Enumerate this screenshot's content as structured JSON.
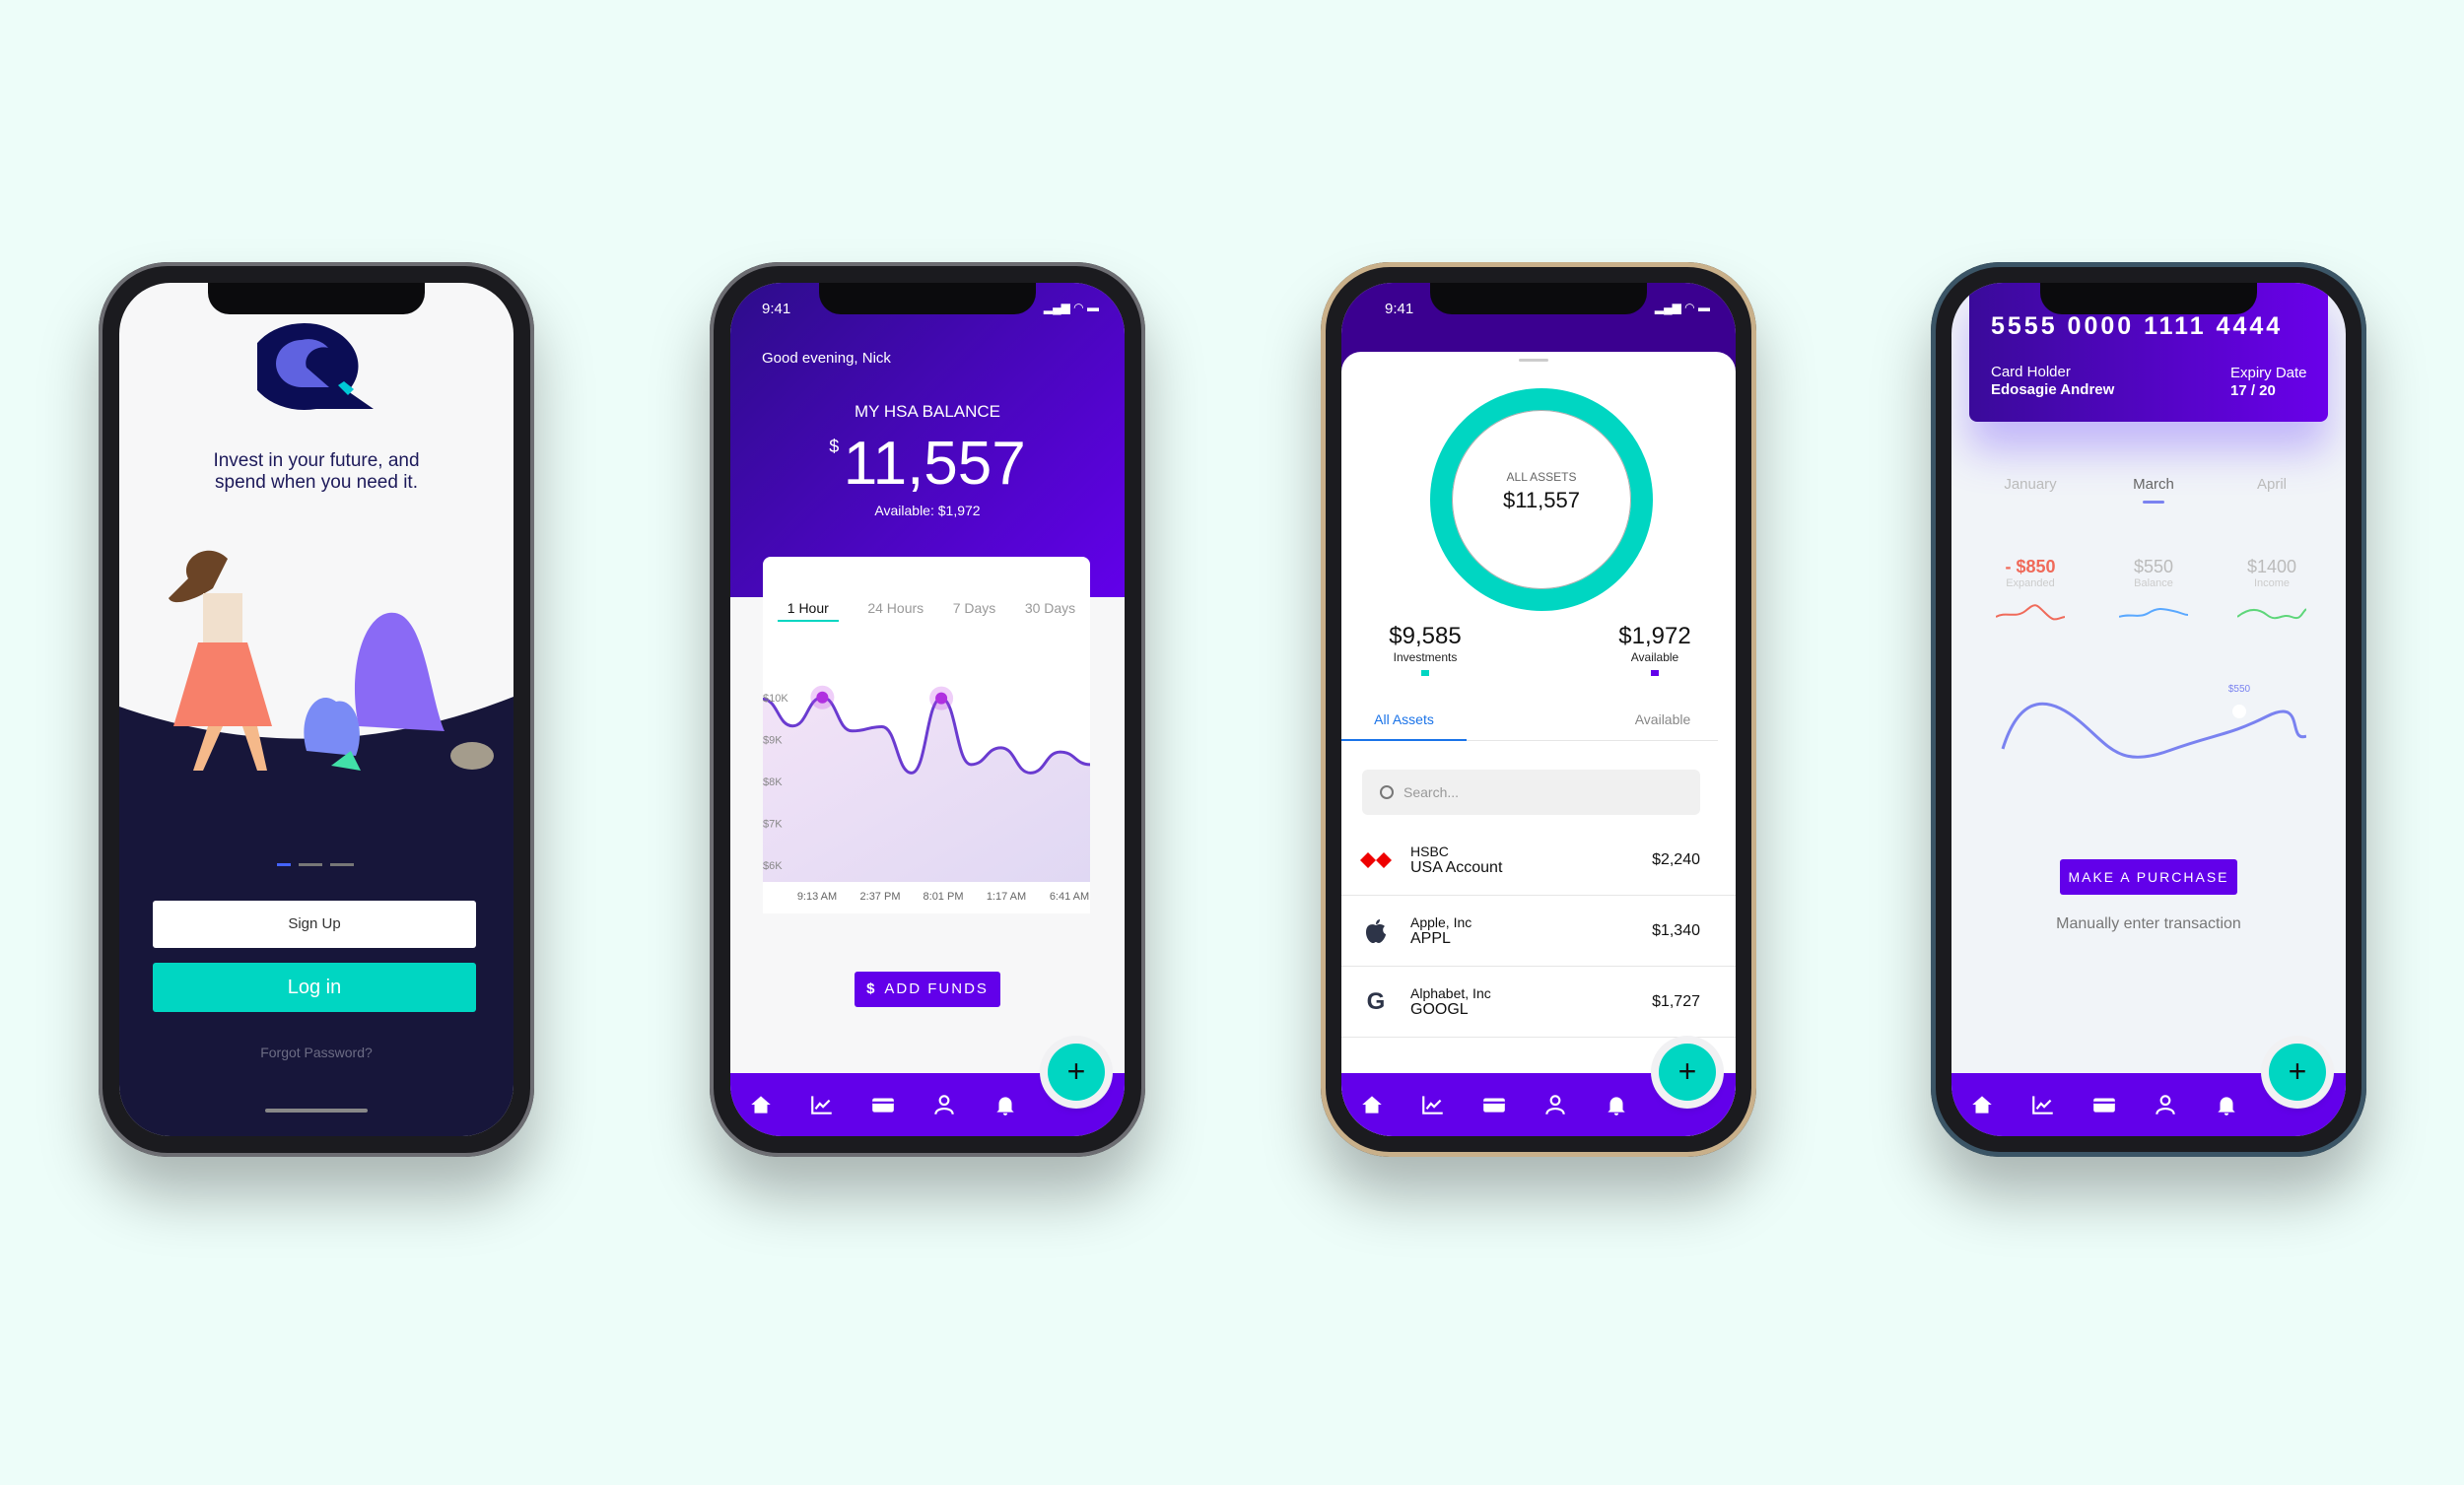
{
  "colors": {
    "background": "#edfdf9",
    "primary": "#6200ea",
    "accent": "#00d6c2",
    "dark": "#17163a",
    "negative": "#f06a5a"
  },
  "status_time": "9:41",
  "onboarding": {
    "tagline_1": "Invest in your future, and",
    "tagline_2": "spend when you need it.",
    "sign_up": "Sign Up",
    "log_in": "Log in",
    "forgot": "Forgot Password?",
    "pager_active": 0
  },
  "dashboard": {
    "greeting": "Good evening, Nick",
    "balance_title": "MY HSA BALANCE",
    "currency": "$",
    "balance": "11,557",
    "available": "Available: $1,972",
    "tabs": [
      "1 Hour",
      "24 Hours",
      "7 Days",
      "30 Days"
    ],
    "active_tab": 0,
    "add_funds": "ADD FUNDS",
    "chart_data": {
      "type": "area",
      "y_ticks": [
        "$10K",
        "$9K",
        "$8K",
        "$7K",
        "$6K"
      ],
      "x_ticks": [
        "9:13 AM",
        "2:37 PM",
        "8:01 PM",
        "1:17 AM",
        "6:41 AM"
      ],
      "ylim": [
        5600,
        10300
      ],
      "values": [
        9960,
        9320,
        10000,
        9200,
        9300,
        8200,
        9980,
        8400,
        8800,
        8200,
        8700,
        8400
      ],
      "highlighted": [
        2,
        6
      ]
    }
  },
  "assets": {
    "donut_label": "ALL ASSETS",
    "donut_total": "$11,557",
    "investments_value": "$9,585",
    "investments_label": "Investments",
    "available_value": "$1,972",
    "available_label": "Available",
    "tabs": [
      "All Assets",
      "Available"
    ],
    "active_tab": 0,
    "search_placeholder": "Search...",
    "rows": [
      {
        "icon": "hsbc-logo",
        "name": "HSBC",
        "sub": "USA Account",
        "amount": "$2,240"
      },
      {
        "icon": "apple-logo",
        "name": "Apple, Inc",
        "sub": "APPL",
        "amount": "$1,340"
      },
      {
        "icon": "google-logo",
        "name": "Alphabet, Inc",
        "sub": "GOOGL",
        "amount": "$1,727"
      }
    ]
  },
  "card": {
    "number": "5555 0000 1111 4444",
    "holder_label": "Card Holder",
    "holder": "Edosagie Andrew",
    "expiry_label": "Expiry Date",
    "expiry": "17 / 20",
    "months": [
      "January",
      "March",
      "April"
    ],
    "active_month": 1,
    "stats": [
      {
        "value": "- $850",
        "label": "Expanded",
        "color": "#f06a5a"
      },
      {
        "value": "$550",
        "label": "Balance",
        "color": "#5aa8ff"
      },
      {
        "value": "$1400",
        "label": "Income",
        "color": "#5ed67a"
      }
    ],
    "marker_label": "$550",
    "purchase": "MAKE A PURCHASE",
    "manual": "Manually enter transaction"
  },
  "nav_icons": [
    "home-icon",
    "chart-icon",
    "wallet-icon",
    "profile-icon",
    "bell-icon"
  ],
  "fab": "+"
}
